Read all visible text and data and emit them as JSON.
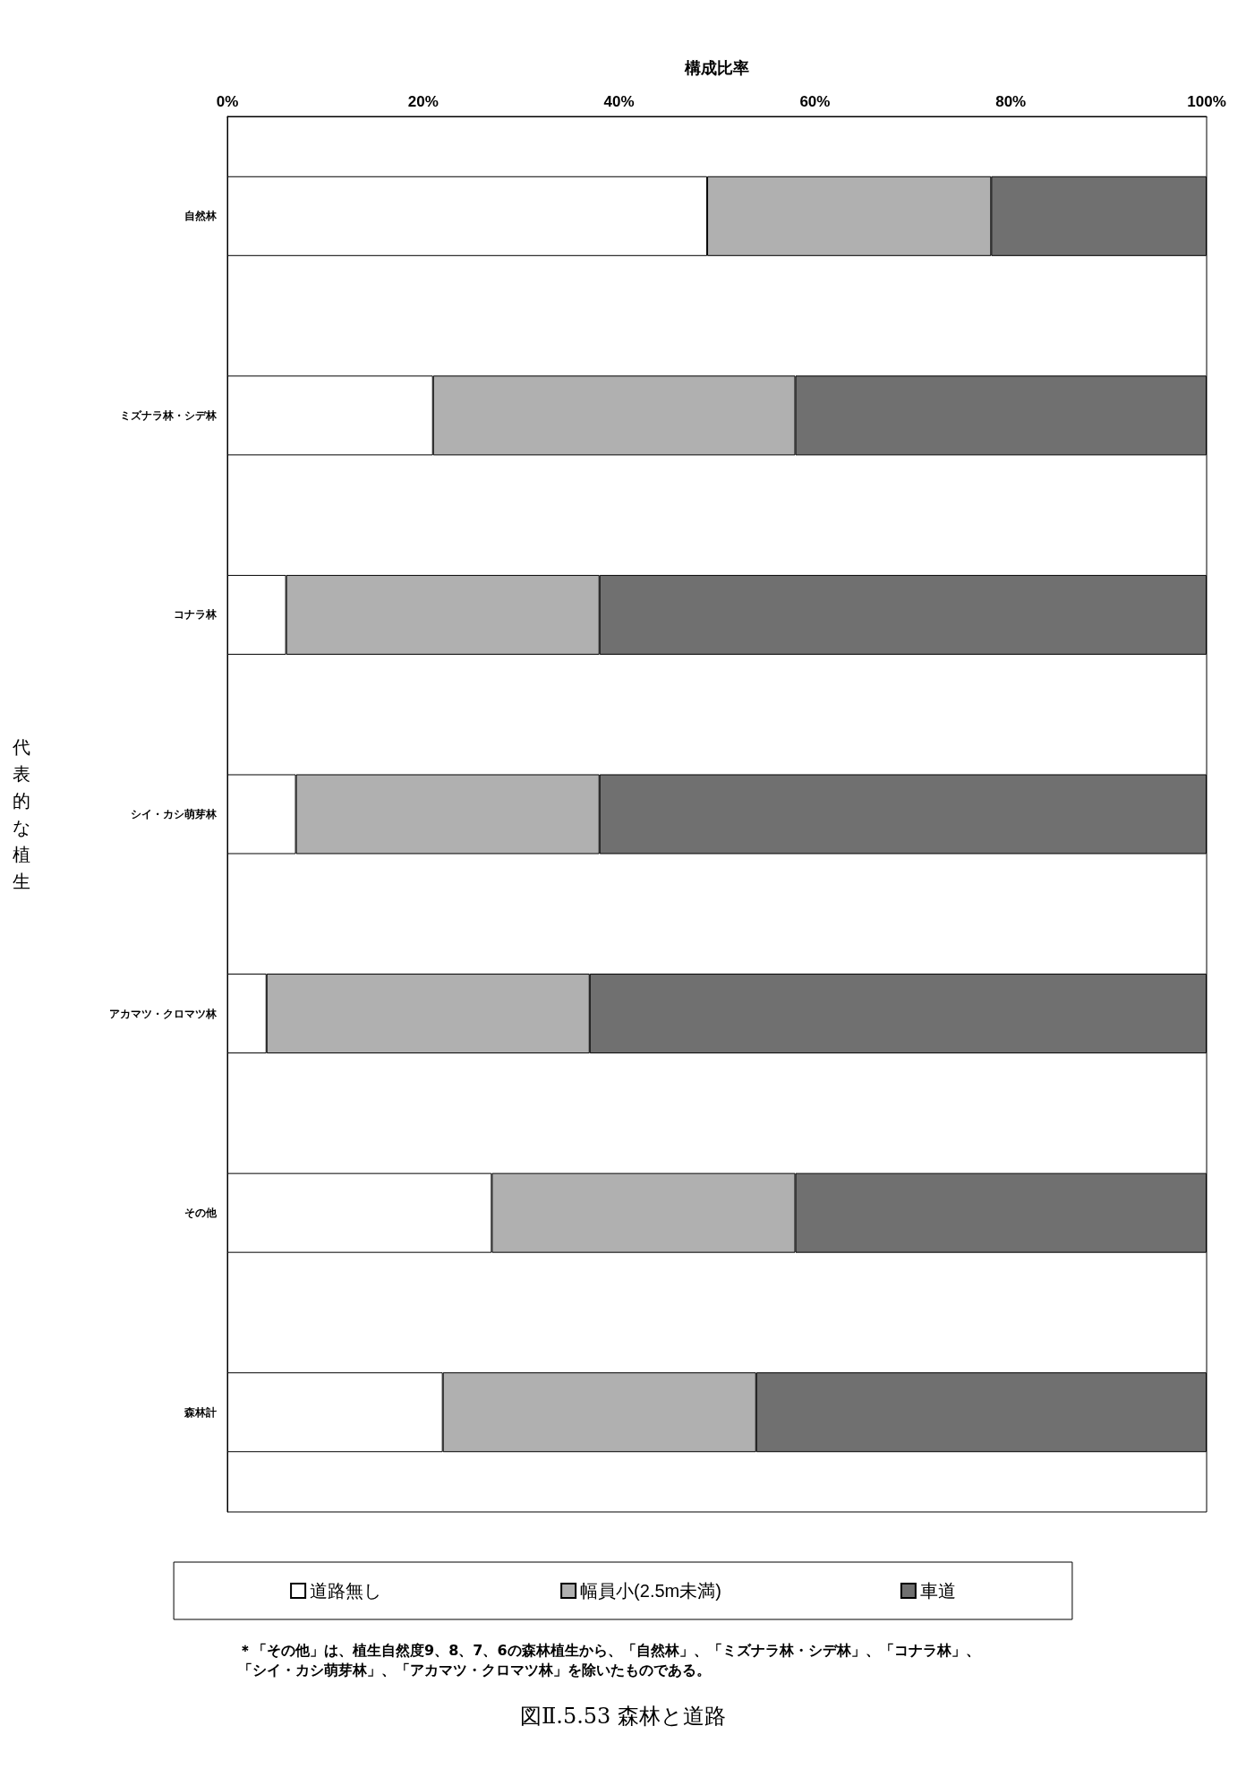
{
  "chart_data": {
    "type": "bar",
    "orientation": "horizontal",
    "stacked": true,
    "title": "図Ⅱ.5.53 森林と道路",
    "xlabel": "構成比率",
    "ylabel": "代表的な植生",
    "categories": [
      "自然林",
      "ミズナラ林・シデ林",
      "コナラ林",
      "シイ・カシ萌芽林",
      "アカマツ・クロマツ林",
      "その他",
      "森林計"
    ],
    "series": [
      {
        "name": "道路無し",
        "color": "#ffffff",
        "values": [
          49,
          21,
          6,
          7,
          4,
          27,
          22
        ]
      },
      {
        "name": "幅員小(2.5m未満)",
        "color": "#b0b0b0",
        "values": [
          29,
          37,
          32,
          31,
          33,
          31,
          32
        ]
      },
      {
        "name": "車道",
        "color": "#707070",
        "values": [
          22,
          42,
          62,
          62,
          63,
          42,
          46
        ]
      }
    ],
    "xlim": [
      0,
      100
    ],
    "xticks": [
      {
        "value": 0,
        "label": "0%"
      },
      {
        "value": 20,
        "label": "20%"
      },
      {
        "value": 40,
        "label": "40%"
      },
      {
        "value": 60,
        "label": "60%"
      },
      {
        "value": 80,
        "label": "80%"
      },
      {
        "value": 100,
        "label": "100%"
      }
    ],
    "grid": false,
    "legend": "bottom",
    "annotations": [
      "＊「その他」は、植生自然度9、8、7、6の森林植生から、「自然林」、「ミズナラ林・シデ林」、「コナラ林」、「シイ・カシ萌芽林」、「アカマツ・クロマツ林」を除いたものである。"
    ]
  }
}
